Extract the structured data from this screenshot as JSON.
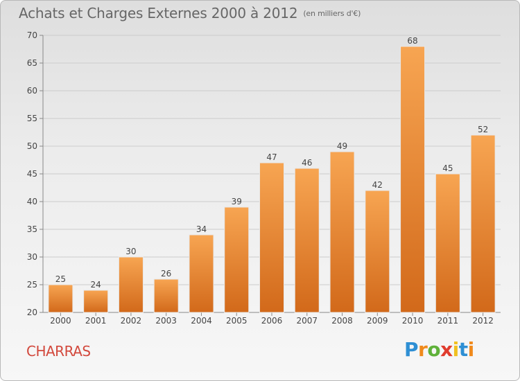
{
  "header": {
    "title": "Achats et Charges Externes 2000 à 2012",
    "subtitle": "(en milliers d'€)"
  },
  "commune": "CHARRAS",
  "logo": {
    "letters": [
      "P",
      "r",
      "o",
      "x",
      "i",
      "t",
      "i"
    ],
    "colors": [
      "#2e8fd4",
      "#f08a1c",
      "#5fb13a",
      "#e03c2e",
      "#f0c020",
      "#2e8fd4",
      "#f08a1c"
    ]
  },
  "colors": {
    "bar_light": "#f7a552",
    "bar_dark": "#d2691a",
    "axis": "#888888",
    "grid": "#cccccc",
    "text": "#444444"
  },
  "chart_data": {
    "type": "bar",
    "title": "Achats et Charges Externes 2000 à 2012",
    "subtitle": "(en milliers d'€)",
    "xlabel": "",
    "ylabel": "",
    "categories": [
      "2000",
      "2001",
      "2002",
      "2003",
      "2004",
      "2005",
      "2006",
      "2007",
      "2008",
      "2009",
      "2010",
      "2011",
      "2012"
    ],
    "values": [
      25,
      24,
      30,
      26,
      34,
      39,
      47,
      46,
      49,
      42,
      68,
      45,
      52
    ],
    "data_labels": [
      "25",
      "24",
      "30",
      "26",
      "34",
      "39",
      "47",
      "46",
      "49",
      "42",
      "68",
      "45",
      "52"
    ],
    "ylim": [
      20,
      70
    ],
    "yticks": [
      20,
      25,
      30,
      35,
      40,
      45,
      50,
      55,
      60,
      65,
      70
    ],
    "grid": true,
    "legend": "none"
  }
}
